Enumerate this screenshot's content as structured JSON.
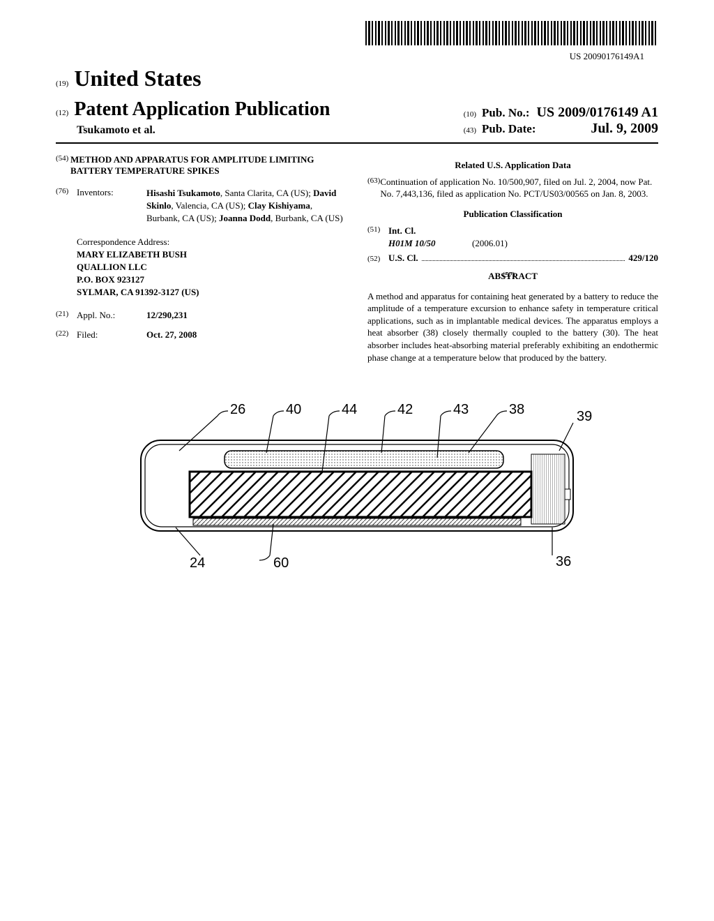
{
  "barcode_number": "US 20090176149A1",
  "country_num": "(19)",
  "country": "United States",
  "pub_type_num": "(12)",
  "pub_type": "Patent Application Publication",
  "authors_line": "Tsukamoto et al.",
  "pub_no_num": "(10)",
  "pub_no_label": "Pub. No.:",
  "pub_no": "US 2009/0176149 A1",
  "pub_date_num": "(43)",
  "pub_date_label": "Pub. Date:",
  "pub_date": "Jul. 9, 2009",
  "fields": {
    "title_num": "(54)",
    "title": "METHOD AND APPARATUS FOR AMPLITUDE LIMITING BATTERY TEMPERATURE SPIKES",
    "inventors_num": "(76)",
    "inventors_label": "Inventors:",
    "inventors_html": "<span class='bold'>Hisashi Tsukamoto</span>, Santa Clarita, CA (US); <span class='bold'>David Skinlo</span>, Valencia, CA (US); <span class='bold'>Clay Kishiyama</span>, Burbank, CA (US); <span class='bold'>Joanna Dodd</span>, Burbank, CA (US)",
    "correspondence_label": "Correspondence Address:",
    "correspondence_name": "MARY ELIZABETH BUSH",
    "correspondence_company": "QUALLION LLC",
    "correspondence_pobox": "P.O. BOX 923127",
    "correspondence_city": "SYLMAR, CA 91392-3127 (US)",
    "appl_num": "(21)",
    "appl_label": "Appl. No.:",
    "appl_value": "12/290,231",
    "filed_num": "(22)",
    "filed_label": "Filed:",
    "filed_value": "Oct. 27, 2008"
  },
  "related": {
    "title": "Related U.S. Application Data",
    "num": "(63)",
    "text": "Continuation of application No. 10/500,907, filed on Jul. 2, 2004, now Pat. No. 7,443,136, filed as application No. PCT/US03/00565 on Jan. 8, 2003."
  },
  "classification": {
    "title": "Publication Classification",
    "intcl_num": "(51)",
    "intcl_label": "Int. Cl.",
    "intcl_code": "H01M 10/50",
    "intcl_date": "(2006.01)",
    "uscl_num": "(52)",
    "uscl_label": "U.S. Cl.",
    "uscl_code": "429/120"
  },
  "abstract": {
    "num": "(57)",
    "title": "ABSTRACT",
    "text": "A method and apparatus for containing heat generated by a battery to reduce the amplitude of a temperature excursion to enhance safety in temperature critical applications, such as in implantable medical devices. The apparatus employs a heat absorber (38) closely thermally coupled to the battery (30). The heat absorber includes heat-absorbing material preferably exhibiting an endothermic phase change at a temperature below that produced by the battery."
  },
  "figure": {
    "labels": {
      "l26": "26",
      "l40": "40",
      "l44": "44",
      "l42": "42",
      "l43": "43",
      "l38": "38",
      "l39": "39",
      "l24": "24",
      "l60": "60",
      "l36": "36"
    },
    "colors": {
      "stroke": "#000000",
      "fill_hatch": "#888888",
      "fill_dots": "#666666"
    }
  }
}
